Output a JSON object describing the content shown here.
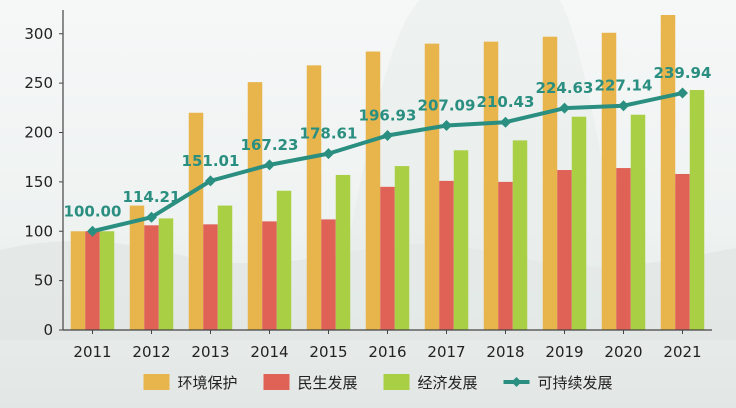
{
  "chart_data": {
    "type": "bar",
    "categories": [
      "2011",
      "2012",
      "2013",
      "2014",
      "2015",
      "2016",
      "2017",
      "2018",
      "2019",
      "2020",
      "2021"
    ],
    "series": [
      {
        "name": "环境保护",
        "type": "bar",
        "color": "#e8b44c",
        "values": [
          100,
          126,
          220,
          251,
          268,
          282,
          290,
          292,
          297,
          301,
          319
        ]
      },
      {
        "name": "民生发展",
        "type": "bar",
        "color": "#e06257",
        "values": [
          100,
          106,
          107,
          110,
          112,
          145,
          151,
          150,
          162,
          164,
          158
        ]
      },
      {
        "name": "经济发展",
        "type": "bar",
        "color": "#a9cf45",
        "values": [
          100,
          113,
          126,
          141,
          157,
          166,
          182,
          192,
          216,
          218,
          243
        ]
      },
      {
        "name": "可持续发展",
        "type": "line",
        "color": "#2a8f80",
        "values": [
          100.0,
          114.21,
          151.01,
          167.23,
          178.61,
          196.93,
          207.09,
          210.43,
          224.63,
          227.14,
          239.94
        ],
        "labels": [
          "100.00",
          "114.21",
          "151.01",
          "167.23",
          "178.61",
          "196.93",
          "207.09",
          "210.43",
          "224.63",
          "227.14",
          "239.94"
        ]
      }
    ],
    "y_ticks": [
      "0",
      "50",
      "100",
      "150",
      "200",
      "250",
      "300"
    ],
    "ylim": [
      0,
      320
    ],
    "grid": false,
    "legend_position": "bottom"
  }
}
